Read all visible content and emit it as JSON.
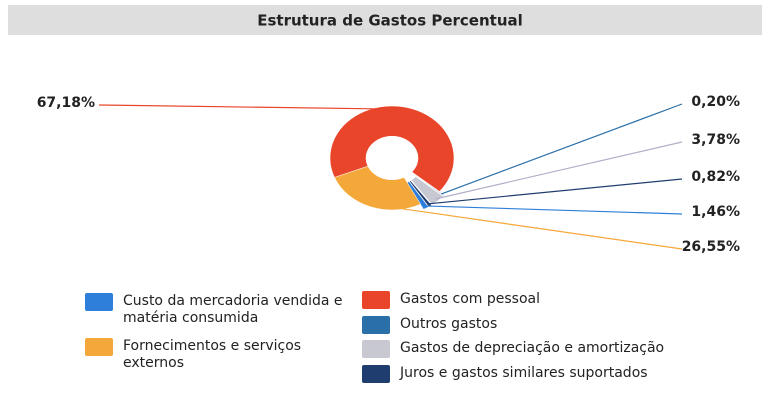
{
  "chart_data": {
    "type": "pie",
    "title": "Estrutura de Gastos Percentual",
    "categories": [
      "Custo da mercadoria vendida e matéria consumida",
      "Fornecimentos e serviços externos",
      "Gastos com pessoal",
      "Outros gastos",
      "Gastos de depreciação e amortização",
      "Juros e gastos similares suportados"
    ],
    "values": [
      1.46,
      26.55,
      67.18,
      0.2,
      3.78,
      0.82
    ],
    "value_labels": [
      "1,46%",
      "26,55%",
      "67,18%",
      "0,20%",
      "3,78%",
      "0,82%"
    ],
    "colors": [
      "#2e7fd9",
      "#f5a83a",
      "#e8452a",
      "#2a6fa8",
      "#c8c8d2",
      "#1f3d6e"
    ],
    "donut": true,
    "legend": "bottom"
  }
}
